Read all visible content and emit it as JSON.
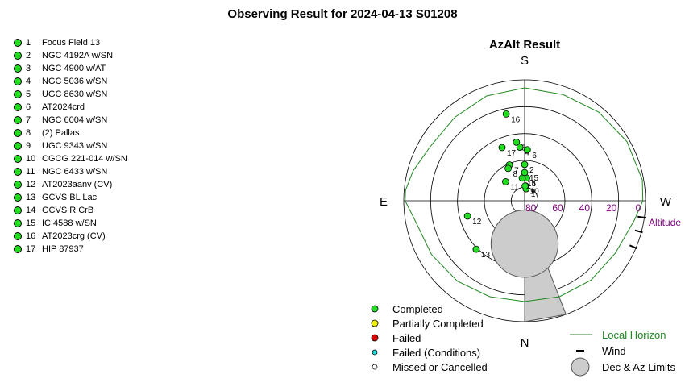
{
  "title": "Observing Result for 2024-04-13 S01208",
  "targets": [
    {
      "num": "1",
      "name": "Focus Field 13"
    },
    {
      "num": "2",
      "name": "NGC 4192A w/SN"
    },
    {
      "num": "3",
      "name": "NGC 4900 w/AT"
    },
    {
      "num": "4",
      "name": "NGC 5036 w/SN"
    },
    {
      "num": "5",
      "name": "UGC 8630 w/SN"
    },
    {
      "num": "6",
      "name": "AT2024crd"
    },
    {
      "num": "7",
      "name": "NGC 6004 w/SN"
    },
    {
      "num": "8",
      "name": "(2) Pallas"
    },
    {
      "num": "9",
      "name": "UGC 9343 w/SN"
    },
    {
      "num": "10",
      "name": "CGCG 221-014 w/SN"
    },
    {
      "num": "11",
      "name": "NGC 6433 w/SN"
    },
    {
      "num": "12",
      "name": "AT2023aanv (CV)"
    },
    {
      "num": "13",
      "name": "GCVS BL Lac"
    },
    {
      "num": "14",
      "name": "GCVS R CrB"
    },
    {
      "num": "15",
      "name": "IC 4588 w/SN"
    },
    {
      "num": "16",
      "name": "AT2023crg (CV)"
    },
    {
      "num": "17",
      "name": "HIP 87937"
    }
  ],
  "colors": {
    "completed": "#22dd22",
    "partial": "#eeee00",
    "failed": "#dd0000",
    "failed_conditions": "#22dddd",
    "horizon": "#228822",
    "altitude_label": "#800080",
    "limits_fill": "#cccccc"
  },
  "chart_data": {
    "type": "scatter",
    "projection": "polar az-alt",
    "title": "AzAlt Result",
    "compass": {
      "top": "S",
      "bottom": "N",
      "left": "E",
      "right": "W"
    },
    "radial_axis": {
      "label": "Altitude",
      "ticks": [
        "80",
        "60",
        "40",
        "20",
        "0"
      ],
      "unit": "deg",
      "range": [
        0,
        90
      ]
    },
    "points": [
      {
        "label": "1",
        "az": 353,
        "alt": 81,
        "status": "Completed"
      },
      {
        "label": "2",
        "az": 0,
        "alt": 63,
        "status": "Completed"
      },
      {
        "label": "3",
        "az": 8,
        "alt": 46,
        "status": "Completed"
      },
      {
        "label": "4",
        "az": 5,
        "alt": 50,
        "status": "Completed"
      },
      {
        "label": "5",
        "az": 355,
        "alt": 73,
        "status": "Completed"
      },
      {
        "label": "6",
        "az": 357,
        "alt": 52,
        "status": "Completed"
      },
      {
        "label": "7",
        "az": 23,
        "alt": 61,
        "status": "Completed"
      },
      {
        "label": "8",
        "az": 27,
        "alt": 63,
        "status": "Completed"
      },
      {
        "label": "9",
        "az": 356,
        "alt": 79,
        "status": "Completed"
      },
      {
        "label": "10",
        "az": 358,
        "alt": 79,
        "status": "Completed"
      },
      {
        "label": "11",
        "az": 45,
        "alt": 70,
        "status": "Completed"
      },
      {
        "label": "12",
        "az": 105,
        "alt": 46,
        "status": "Completed"
      },
      {
        "label": "13",
        "az": 135,
        "alt": 39,
        "status": "Completed"
      },
      {
        "label": "14",
        "az": 6,
        "alt": 73,
        "status": "Completed"
      },
      {
        "label": "15",
        "az": 0,
        "alt": 69,
        "status": "Completed"
      },
      {
        "label": "16",
        "az": 12,
        "alt": 24,
        "status": "Completed"
      },
      {
        "label": "17",
        "az": 23,
        "alt": 47,
        "status": "Completed"
      }
    ],
    "local_horizon": {
      "az": [
        0,
        20,
        40,
        60,
        75,
        85,
        90,
        100,
        120,
        140,
        160,
        180,
        200,
        220,
        240,
        260,
        270,
        280,
        300,
        320,
        340,
        360
      ],
      "alt": [
        6,
        7,
        9,
        9,
        4,
        1,
        1,
        7,
        10,
        12,
        14,
        15,
        14,
        13,
        12,
        7,
        2,
        1,
        2,
        4,
        6,
        6
      ]
    },
    "wind": [
      {
        "az": 247,
        "alt": 2
      },
      {
        "az": 255,
        "alt": 2
      },
      {
        "az": 262,
        "alt": 2
      }
    ],
    "dec_limit_circle": {
      "az": 180,
      "alt": 58,
      "radius_deg": 25
    },
    "az_limit_wedge": {
      "az": [
        180,
        200
      ],
      "alt": 0
    },
    "legend": {
      "completed": "Completed",
      "partial": "Partially Completed",
      "failed": "Failed",
      "failed_conditions": "Failed (Conditions)",
      "missed": "Missed or Cancelled",
      "horizon": "Local Horizon",
      "wind": "Wind",
      "limits": "Dec & Az Limits"
    }
  }
}
